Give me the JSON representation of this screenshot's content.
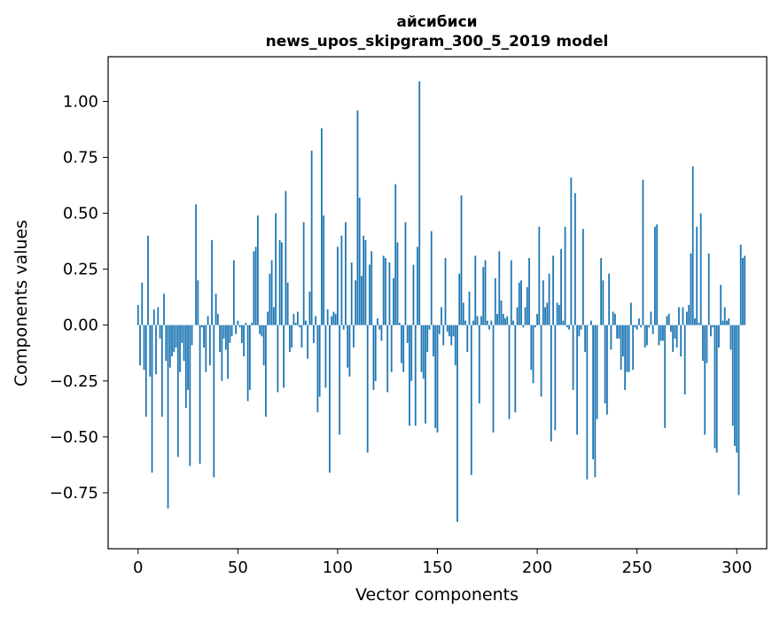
{
  "chart_data": {
    "type": "bar",
    "title": "айсибиси",
    "subtitle": "news_upos_skipgram_300_5_2019 model",
    "xlabel": "Vector components",
    "ylabel": "Components values",
    "xlim": [
      -15,
      315
    ],
    "ylim": [
      -1.0,
      1.2
    ],
    "xticks": [
      0,
      50,
      100,
      150,
      200,
      250,
      300
    ],
    "yticks": [
      -0.75,
      -0.5,
      -0.25,
      0.0,
      0.25,
      0.5,
      0.75,
      1.0
    ],
    "ytick_labels": [
      "−0.75",
      "−0.50",
      "−0.25",
      "0.00",
      "0.25",
      "0.50",
      "0.75",
      "1.00"
    ],
    "grid": false,
    "color": "#1f77b4",
    "x_start": 0,
    "values": [
      0.09,
      -0.18,
      0.19,
      -0.2,
      -0.41,
      0.4,
      -0.23,
      -0.66,
      0.07,
      -0.22,
      0.08,
      -0.06,
      -0.41,
      0.14,
      -0.16,
      -0.82,
      -0.19,
      -0.14,
      -0.12,
      -0.1,
      -0.59,
      -0.21,
      -0.08,
      -0.16,
      -0.37,
      -0.29,
      -0.63,
      -0.09,
      0.0,
      0.54,
      0.2,
      -0.62,
      -0.01,
      -0.1,
      -0.21,
      0.04,
      -0.18,
      0.38,
      -0.68,
      0.14,
      0.05,
      -0.12,
      -0.25,
      -0.06,
      -0.11,
      -0.24,
      -0.08,
      -0.05,
      0.29,
      -0.04,
      0.02,
      -0.01,
      -0.08,
      -0.14,
      0.01,
      -0.34,
      -0.29,
      0.01,
      0.33,
      0.35,
      0.49,
      -0.04,
      -0.05,
      -0.18,
      -0.41,
      0.06,
      0.23,
      0.29,
      0.08,
      0.5,
      -0.3,
      0.38,
      0.37,
      -0.28,
      0.6,
      0.19,
      -0.12,
      -0.1,
      0.05,
      0.01,
      0.06,
      -0.01,
      -0.1,
      0.46,
      0.02,
      -0.15,
      0.15,
      0.78,
      -0.08,
      0.04,
      -0.39,
      -0.32,
      0.88,
      0.49,
      -0.28,
      0.07,
      -0.66,
      0.04,
      0.06,
      0.05,
      0.35,
      -0.49,
      0.4,
      -0.02,
      0.46,
      -0.19,
      -0.23,
      0.28,
      -0.1,
      0.2,
      0.96,
      0.57,
      0.22,
      0.4,
      0.38,
      -0.57,
      0.27,
      0.33,
      -0.29,
      -0.25,
      0.03,
      -0.02,
      -0.07,
      0.31,
      0.3,
      -0.3,
      0.28,
      -0.21,
      0.21,
      0.63,
      0.37,
      0.01,
      -0.17,
      -0.21,
      0.46,
      -0.08,
      -0.45,
      -0.25,
      0.27,
      -0.45,
      0.35,
      1.09,
      -0.21,
      -0.24,
      -0.44,
      -0.12,
      -0.02,
      0.42,
      -0.14,
      -0.46,
      -0.48,
      -0.04,
      0.08,
      -0.09,
      0.3,
      -0.03,
      -0.05,
      -0.09,
      -0.05,
      -0.18,
      -0.88,
      0.23,
      0.58,
      0.1,
      0.02,
      -0.12,
      0.15,
      -0.67,
      0.02,
      0.31,
      0.04,
      -0.35,
      0.04,
      0.26,
      0.29,
      0.02,
      -0.02,
      0.02,
      -0.48,
      0.21,
      0.05,
      0.33,
      0.11,
      0.05,
      0.03,
      0.04,
      -0.42,
      0.29,
      0.02,
      -0.39,
      0.08,
      0.19,
      0.2,
      -0.01,
      0.08,
      0.17,
      0.3,
      -0.2,
      -0.26,
      -0.01,
      0.05,
      0.44,
      -0.32,
      0.2,
      0.08,
      0.1,
      0.23,
      -0.52,
      0.31,
      -0.47,
      0.1,
      0.09,
      0.34,
      0.02,
      0.44,
      -0.01,
      -0.02,
      0.66,
      -0.29,
      0.59,
      -0.49,
      -0.05,
      -0.02,
      0.43,
      -0.12,
      -0.69,
      0.0,
      0.02,
      -0.6,
      -0.68,
      -0.42,
      0.0,
      0.3,
      0.2,
      -0.35,
      -0.4,
      0.23,
      -0.11,
      0.06,
      0.05,
      -0.06,
      -0.06,
      -0.2,
      -0.14,
      -0.29,
      -0.21,
      -0.21,
      0.1,
      -0.2,
      -0.01,
      -0.02,
      0.03,
      -0.01,
      0.65,
      -0.1,
      -0.09,
      -0.01,
      0.06,
      -0.04,
      0.44,
      0.45,
      -0.09,
      -0.07,
      -0.07,
      -0.46,
      0.04,
      0.05,
      -0.03,
      -0.12,
      -0.06,
      -0.1,
      0.08,
      -0.14,
      0.08,
      -0.31,
      0.06,
      0.09,
      0.32,
      0.71,
      0.03,
      0.44,
      0.01,
      0.5,
      -0.16,
      -0.49,
      -0.17,
      0.32,
      -0.05,
      -0.01,
      -0.55,
      -0.57,
      -0.1,
      0.18,
      0.02,
      0.08,
      0.02,
      0.03,
      -0.11,
      -0.45,
      -0.54,
      -0.57,
      -0.76,
      0.36,
      0.3,
      0.31
    ]
  }
}
